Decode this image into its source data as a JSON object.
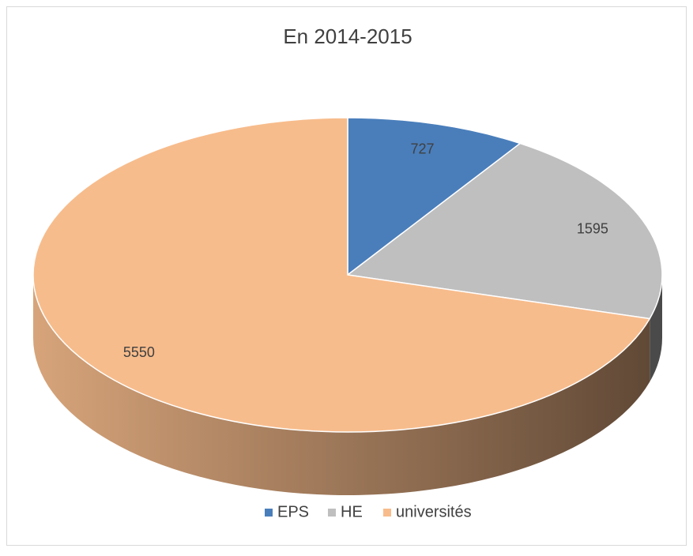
{
  "chart_data": {
    "type": "pie",
    "title": "En 2014-2015",
    "categories": [
      "EPS",
      "HE",
      "universités"
    ],
    "values": [
      727,
      1595,
      5550
    ],
    "colors": [
      "#4a7ebb",
      "#bfbfbf",
      "#f7bc8c"
    ],
    "legend": "bottom"
  }
}
